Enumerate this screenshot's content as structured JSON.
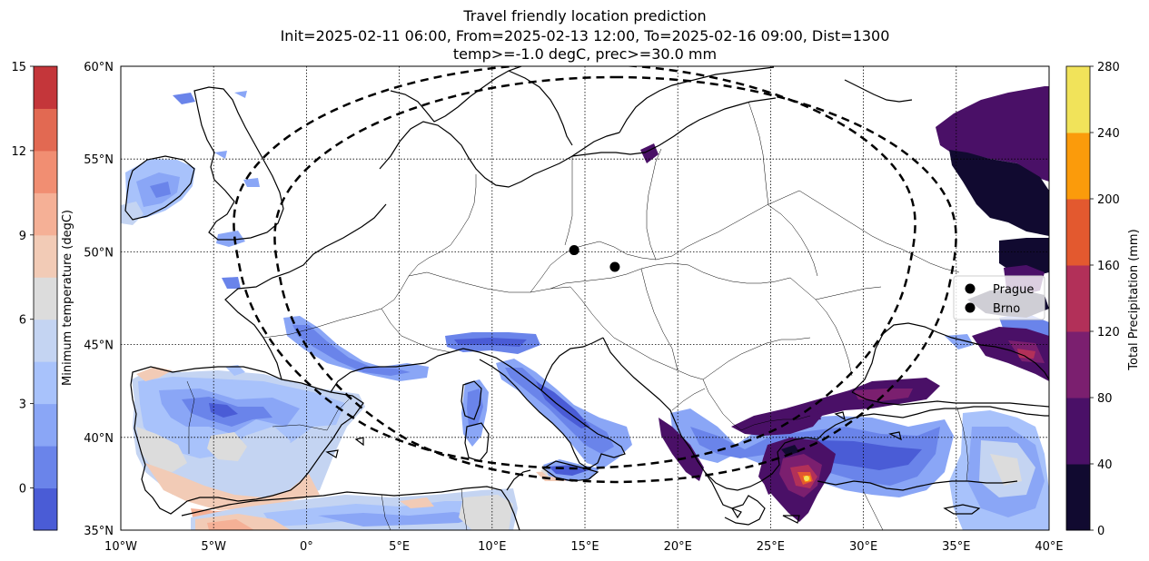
{
  "title": {
    "line1": "Travel friendly location prediction",
    "line2": "Init=2025-02-11 06:00, From=2025-02-13 12:00, To=2025-02-16 09:00, Dist=1300",
    "line3": "temp>=-1.0 degC, prec>=30.0 mm"
  },
  "map": {
    "projection": "PlateCarree",
    "lon_range": [
      -10,
      40
    ],
    "lat_range": [
      35,
      60
    ],
    "lon_ticks": [
      {
        "value": -10,
        "label": "10°W"
      },
      {
        "value": -5,
        "label": "5°W"
      },
      {
        "value": 0,
        "label": "0°"
      },
      {
        "value": 5,
        "label": "5°E"
      },
      {
        "value": 10,
        "label": "10°E"
      },
      {
        "value": 15,
        "label": "15°E"
      },
      {
        "value": 20,
        "label": "20°E"
      },
      {
        "value": 25,
        "label": "25°E"
      },
      {
        "value": 30,
        "label": "30°E"
      },
      {
        "value": 35,
        "label": "35°E"
      },
      {
        "value": 40,
        "label": "40°E"
      }
    ],
    "lat_ticks": [
      {
        "value": 35,
        "label": "35°N"
      },
      {
        "value": 40,
        "label": "40°N"
      },
      {
        "value": 45,
        "label": "45°N"
      },
      {
        "value": 50,
        "label": "50°N"
      },
      {
        "value": 55,
        "label": "55°N"
      },
      {
        "value": 60,
        "label": "60°N"
      }
    ],
    "gridlines": "dotted",
    "range_circles_km": 1300,
    "locations": [
      {
        "name": "Prague",
        "lon": 14.42,
        "lat": 50.09
      },
      {
        "name": "Brno",
        "lon": 16.61,
        "lat": 49.19
      }
    ],
    "legend_position": "right"
  },
  "colorbars": {
    "temperature": {
      "label": "Minimum temperature (degC)",
      "min": -1.5,
      "max": 15,
      "ticks": [
        {
          "value": 0,
          "label": "0"
        },
        {
          "value": 3,
          "label": "3"
        },
        {
          "value": 6,
          "label": "6"
        },
        {
          "value": 9,
          "label": "9"
        },
        {
          "value": 12,
          "label": "12"
        },
        {
          "value": 15,
          "label": "15"
        }
      ],
      "colors": [
        "#4a5cd6",
        "#6a84ea",
        "#8aa6f6",
        "#a8c2fb",
        "#c4d4f2",
        "#dcdcdc",
        "#f2cbb6",
        "#f5b096",
        "#f18e72",
        "#e26952",
        "#c4363a"
      ]
    },
    "precipitation": {
      "label": "Total Precipitation (mm)",
      "min": 0,
      "max": 280,
      "ticks": [
        {
          "value": 0,
          "label": "0"
        },
        {
          "value": 40,
          "label": "40"
        },
        {
          "value": 80,
          "label": "80"
        },
        {
          "value": 120,
          "label": "120"
        },
        {
          "value": 160,
          "label": "160"
        },
        {
          "value": 200,
          "label": "200"
        },
        {
          "value": 240,
          "label": "240"
        },
        {
          "value": 280,
          "label": "280"
        }
      ],
      "colors": [
        "#110a30",
        "#4a1067",
        "#7b1f6f",
        "#b23059",
        "#e3592f",
        "#fb9b0b",
        "#f1e35a"
      ]
    }
  }
}
